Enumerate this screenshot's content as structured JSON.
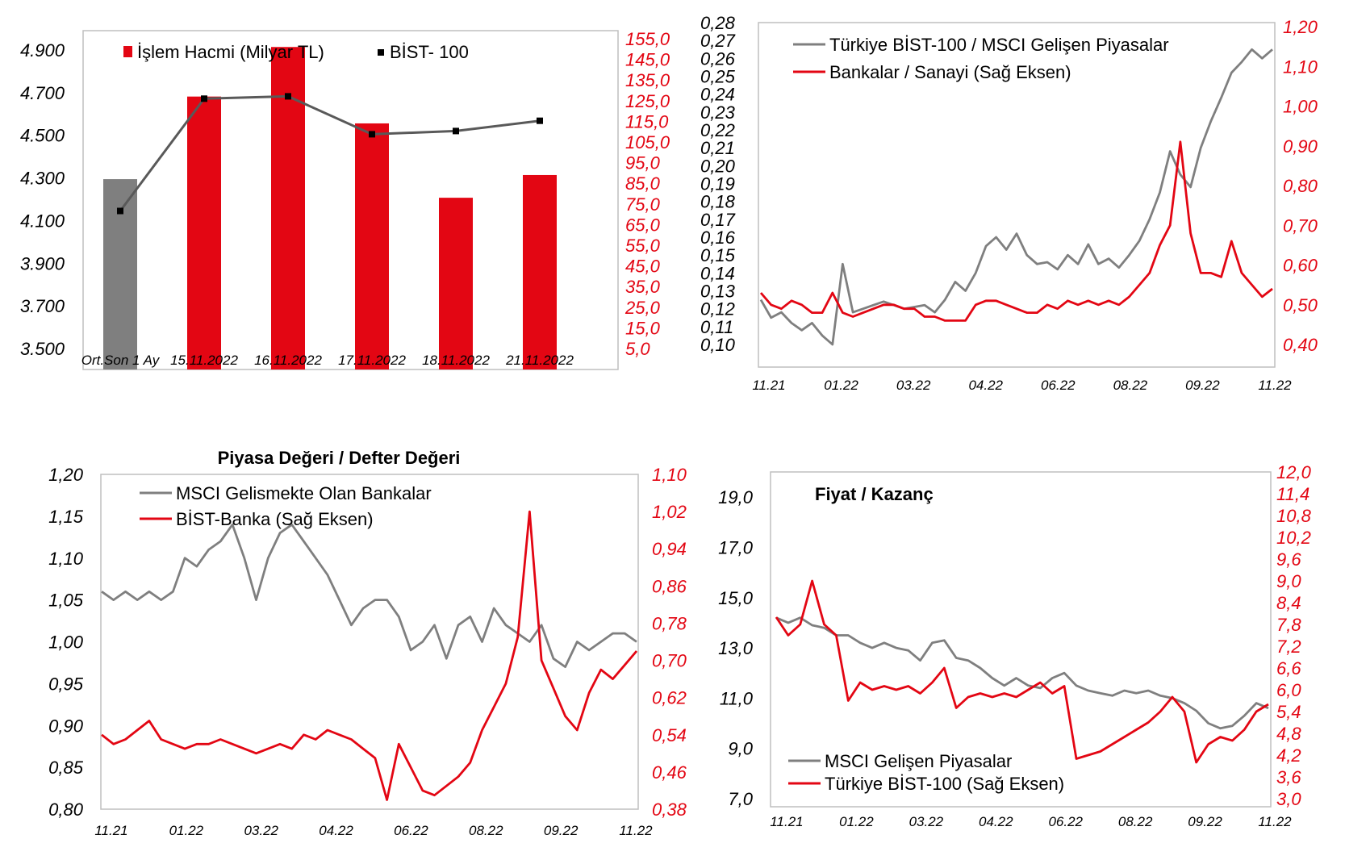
{
  "colors": {
    "red": "#e30613",
    "gray": "#7f7f7f",
    "dark": "#595959",
    "black": "#000000"
  },
  "chart_data": [
    {
      "type": "bar",
      "title": "",
      "categories": [
        "Ort.Son 1 Ay",
        "15.11.2022",
        "16.11.2022",
        "17.11.2022",
        "18.11.2022",
        "21.11.2022"
      ],
      "series": [
        {
          "name": "İşlem Hacmi (Milyar TL)",
          "axis": "right",
          "values": [
            87.0,
            127.0,
            151.0,
            114.0,
            78.0,
            89.0
          ]
        },
        {
          "name": "BİST- 100",
          "type": "line",
          "axis": "left",
          "values": [
            4145,
            4672,
            4683,
            4505,
            4520,
            4568
          ]
        }
      ],
      "first_bar_color": "gray",
      "yticks_left": [
        "3.500",
        "3.700",
        "3.900",
        "4.100",
        "4.300",
        "4.500",
        "4.700",
        "4.900"
      ],
      "yticks_right": [
        "5,0",
        "15,0",
        "25,0",
        "35,0",
        "45,0",
        "55,0",
        "65,0",
        "75,0",
        "85,0",
        "95,0",
        "105,0",
        "115,0",
        "125,0",
        "135,0",
        "145,0",
        "155,0"
      ],
      "ylim_left": [
        3500,
        4900
      ],
      "ylim_right": [
        5,
        155
      ]
    },
    {
      "type": "line",
      "title": "",
      "x_tick_labels": [
        "11.21",
        "01.22",
        "03.22",
        "04.22",
        "06.22",
        "08.22",
        "09.22",
        "11.22"
      ],
      "series": [
        {
          "name": "Türkiye BİST-100 / MSCI Gelişen Piyasalar",
          "axis": "left",
          "color": "gray",
          "values": [
            0.125,
            0.115,
            0.118,
            0.112,
            0.108,
            0.112,
            0.105,
            0.1,
            0.145,
            0.118,
            0.12,
            0.122,
            0.124,
            0.122,
            0.12,
            0.121,
            0.122,
            0.118,
            0.125,
            0.135,
            0.13,
            0.14,
            0.155,
            0.16,
            0.153,
            0.162,
            0.15,
            0.145,
            0.146,
            0.142,
            0.15,
            0.145,
            0.156,
            0.145,
            0.148,
            0.143,
            0.15,
            0.158,
            0.17,
            0.185,
            0.208,
            0.195,
            0.188,
            0.21,
            0.225,
            0.238,
            0.252,
            0.258,
            0.265,
            0.26,
            0.265
          ]
        },
        {
          "name": "Bankalar / Sanayi (Sağ Eksen)",
          "axis": "right",
          "color": "red",
          "values": [
            0.53,
            0.5,
            0.49,
            0.51,
            0.5,
            0.48,
            0.48,
            0.53,
            0.48,
            0.47,
            0.48,
            0.49,
            0.5,
            0.5,
            0.49,
            0.49,
            0.47,
            0.47,
            0.46,
            0.46,
            0.46,
            0.5,
            0.51,
            0.51,
            0.5,
            0.49,
            0.48,
            0.48,
            0.5,
            0.49,
            0.51,
            0.5,
            0.51,
            0.5,
            0.51,
            0.5,
            0.52,
            0.55,
            0.58,
            0.65,
            0.7,
            0.91,
            0.68,
            0.58,
            0.58,
            0.57,
            0.66,
            0.58,
            0.55,
            0.52,
            0.54
          ]
        }
      ],
      "yticks_left": [
        "0,10",
        "0,11",
        "0,12",
        "0,13",
        "0,14",
        "0,15",
        "0,16",
        "0,17",
        "0,18",
        "0,19",
        "0,20",
        "0,21",
        "0,22",
        "0,23",
        "0,24",
        "0,25",
        "0,26",
        "0,27",
        "0,28"
      ],
      "yticks_right": [
        "0,40",
        "0,50",
        "0,60",
        "0,70",
        "0,80",
        "0,90",
        "1,00",
        "1,10",
        "1,20"
      ],
      "ylim_left": [
        0.1,
        0.28
      ],
      "ylim_right": [
        0.4,
        1.2
      ]
    },
    {
      "type": "line",
      "title": "Piyasa Değeri / Defter Değeri",
      "x_tick_labels": [
        "11.21",
        "01.22",
        "03.22",
        "04.22",
        "06.22",
        "08.22",
        "09.22",
        "11.22"
      ],
      "series": [
        {
          "name": "MSCI Gelismekte Olan Bankalar",
          "axis": "left",
          "color": "gray",
          "values": [
            1.06,
            1.05,
            1.06,
            1.05,
            1.06,
            1.05,
            1.06,
            1.1,
            1.09,
            1.11,
            1.12,
            1.14,
            1.1,
            1.05,
            1.1,
            1.13,
            1.14,
            1.12,
            1.1,
            1.08,
            1.05,
            1.02,
            1.04,
            1.05,
            1.05,
            1.03,
            0.99,
            1.0,
            1.02,
            0.98,
            1.02,
            1.03,
            1.0,
            1.04,
            1.02,
            1.01,
            1.0,
            1.02,
            0.98,
            0.97,
            1.0,
            0.99,
            1.0,
            1.01,
            1.01,
            1.0
          ]
        },
        {
          "name": "BİST-Banka (Sağ Eksen)",
          "axis": "right",
          "color": "red",
          "values": [
            0.54,
            0.52,
            0.53,
            0.55,
            0.57,
            0.53,
            0.52,
            0.51,
            0.52,
            0.52,
            0.53,
            0.52,
            0.51,
            0.5,
            0.51,
            0.52,
            0.51,
            0.54,
            0.53,
            0.55,
            0.54,
            0.53,
            0.51,
            0.49,
            0.4,
            0.52,
            0.47,
            0.42,
            0.41,
            0.43,
            0.45,
            0.48,
            0.55,
            0.6,
            0.65,
            0.75,
            1.02,
            0.7,
            0.64,
            0.58,
            0.55,
            0.63,
            0.68,
            0.66,
            0.69,
            0.72
          ]
        }
      ],
      "yticks_left": [
        "0,80",
        "0,85",
        "0,90",
        "0,95",
        "1,00",
        "1,05",
        "1,10",
        "1,15",
        "1,20"
      ],
      "yticks_right": [
        "0,38",
        "0,46",
        "0,54",
        "0,62",
        "0,70",
        "0,78",
        "0,86",
        "0,94",
        "1,02",
        "1,10"
      ],
      "ylim_left": [
        0.8,
        1.2
      ],
      "ylim_right": [
        0.38,
        1.1
      ]
    },
    {
      "type": "line",
      "title": "Fiyat / Kazanç",
      "x_tick_labels": [
        "11.21",
        "01.22",
        "03.22",
        "04.22",
        "06.22",
        "08.22",
        "09.22",
        "11.22"
      ],
      "series": [
        {
          "name": "MSCI Gelişen Piyasalar",
          "axis": "left",
          "color": "gray",
          "values": [
            14.2,
            14.0,
            14.2,
            13.9,
            13.8,
            13.5,
            13.5,
            13.2,
            13.0,
            13.2,
            13.0,
            12.9,
            12.5,
            13.2,
            13.3,
            12.6,
            12.5,
            12.2,
            11.8,
            11.5,
            11.8,
            11.5,
            11.4,
            11.8,
            12.0,
            11.5,
            11.3,
            11.2,
            11.1,
            11.3,
            11.2,
            11.3,
            11.1,
            11.0,
            10.8,
            10.5,
            10.0,
            9.8,
            9.9,
            10.3,
            10.8,
            10.6
          ]
        },
        {
          "name": "Türkiye BİST-100 (Sağ Eksen)",
          "axis": "right",
          "color": "red",
          "values": [
            8.0,
            7.5,
            7.8,
            9.0,
            7.8,
            7.5,
            5.7,
            6.2,
            6.0,
            6.1,
            6.0,
            6.1,
            5.9,
            6.2,
            6.6,
            5.5,
            5.8,
            5.9,
            5.8,
            5.9,
            5.8,
            6.0,
            6.2,
            5.9,
            6.1,
            4.1,
            4.2,
            4.3,
            4.5,
            4.7,
            4.9,
            5.1,
            5.4,
            5.8,
            5.4,
            4.0,
            4.5,
            4.7,
            4.6,
            4.9,
            5.4,
            5.6
          ]
        }
      ],
      "yticks_left": [
        "7,0",
        "9,0",
        "11,0",
        "13,0",
        "15,0",
        "17,0",
        "19,0"
      ],
      "yticks_right": [
        "3,0",
        "3,6",
        "4,2",
        "4,8",
        "5,4",
        "6,0",
        "6,6",
        "7,2",
        "7,8",
        "8,4",
        "9,0",
        "9,6",
        "10,2",
        "10,8",
        "11,4",
        "12,0"
      ],
      "ylim_left": [
        7.0,
        20.0
      ],
      "ylim_right": [
        3.0,
        12.0
      ]
    }
  ]
}
